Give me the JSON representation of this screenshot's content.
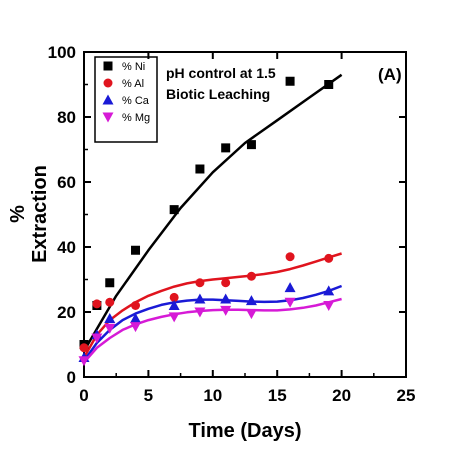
{
  "chart_data": {
    "type": "scatter",
    "xlabel": "Time (Days)",
    "ylabel_top": "%",
    "ylabel_bottom": "Extraction",
    "xlim": [
      0,
      25
    ],
    "ylim": [
      0,
      100
    ],
    "x_ticks": [
      0,
      5,
      10,
      15,
      20,
      25
    ],
    "y_ticks": [
      0,
      20,
      40,
      60,
      80,
      100
    ],
    "grid": false,
    "legend_position": "top-left",
    "annotations": [
      "pH control at 1.5",
      "Biotic Leaching"
    ],
    "panel_label": "(A)",
    "series": [
      {
        "name": "% Ni",
        "marker": "square",
        "color": "#000000",
        "x": [
          0,
          1,
          2,
          4,
          7,
          9,
          11,
          13,
          16,
          19
        ],
        "y": [
          10,
          22,
          29,
          39,
          51.5,
          64,
          70.5,
          71.5,
          91,
          90
        ],
        "fit": [
          [
            0,
            8
          ],
          [
            2.5,
            25
          ],
          [
            5,
            39
          ],
          [
            7.5,
            52
          ],
          [
            10,
            63
          ],
          [
            12.5,
            72
          ],
          [
            15,
            79
          ],
          [
            17.5,
            86
          ],
          [
            20,
            93
          ]
        ]
      },
      {
        "name": "% Al",
        "marker": "circle",
        "color": "#e0141e",
        "x": [
          0,
          1,
          2,
          4,
          7,
          9,
          11,
          13,
          16,
          19
        ],
        "y": [
          9,
          22.5,
          23,
          22,
          24.5,
          29,
          29,
          31,
          37,
          36.5
        ],
        "fit": [
          [
            0,
            6
          ],
          [
            1,
            13
          ],
          [
            2,
            17.5
          ],
          [
            3,
            20.5
          ],
          [
            4,
            23
          ],
          [
            5,
            25
          ],
          [
            6,
            26.5
          ],
          [
            7,
            27.8
          ],
          [
            8,
            28.8
          ],
          [
            9,
            29.5
          ],
          [
            10,
            30
          ],
          [
            11,
            30.4
          ],
          [
            12,
            30.8
          ],
          [
            13,
            31.2
          ],
          [
            14,
            31.7
          ],
          [
            15,
            32.3
          ],
          [
            16,
            33.2
          ],
          [
            17,
            34.3
          ],
          [
            18,
            35.5
          ],
          [
            19,
            36.8
          ],
          [
            20,
            38
          ]
        ]
      },
      {
        "name": "% Ca",
        "marker": "triangle-up",
        "color": "#1a1ad6",
        "x": [
          0,
          1,
          2,
          4,
          7,
          9,
          11,
          13,
          16,
          19
        ],
        "y": [
          6,
          13,
          18,
          18,
          22,
          24,
          24,
          23.5,
          27.5,
          26.5
        ],
        "fit": [
          [
            0,
            5
          ],
          [
            1,
            10.5
          ],
          [
            2,
            14.5
          ],
          [
            3,
            17.5
          ],
          [
            4,
            19.5
          ],
          [
            5,
            21
          ],
          [
            6,
            22.2
          ],
          [
            7,
            23
          ],
          [
            8,
            23.5
          ],
          [
            9,
            23.8
          ],
          [
            10,
            23.8
          ],
          [
            11,
            23.6
          ],
          [
            12,
            23.4
          ],
          [
            13,
            23.2
          ],
          [
            14,
            23.1
          ],
          [
            15,
            23.2
          ],
          [
            16,
            23.6
          ],
          [
            17,
            24.3
          ],
          [
            18,
            25.3
          ],
          [
            19,
            26.5
          ],
          [
            20,
            28
          ]
        ]
      },
      {
        "name": "% Mg",
        "marker": "triangle-down",
        "color": "#d61ad6",
        "x": [
          0,
          1,
          2,
          4,
          7,
          9,
          11,
          13,
          16,
          19
        ],
        "y": [
          5,
          12,
          15,
          15.5,
          18.5,
          20,
          20.5,
          19.5,
          23,
          22
        ],
        "fit": [
          [
            0,
            4.5
          ],
          [
            1,
            9
          ],
          [
            2,
            12
          ],
          [
            3,
            14.5
          ],
          [
            4,
            16.2
          ],
          [
            5,
            17.5
          ],
          [
            6,
            18.5
          ],
          [
            7,
            19.3
          ],
          [
            8,
            19.9
          ],
          [
            9,
            20.3
          ],
          [
            10,
            20.6
          ],
          [
            11,
            20.7
          ],
          [
            12,
            20.7
          ],
          [
            13,
            20.6
          ],
          [
            14,
            20.5
          ],
          [
            15,
            20.5
          ],
          [
            16,
            20.8
          ],
          [
            17,
            21.3
          ],
          [
            18,
            22
          ],
          [
            19,
            23
          ],
          [
            20,
            24
          ]
        ]
      }
    ]
  }
}
